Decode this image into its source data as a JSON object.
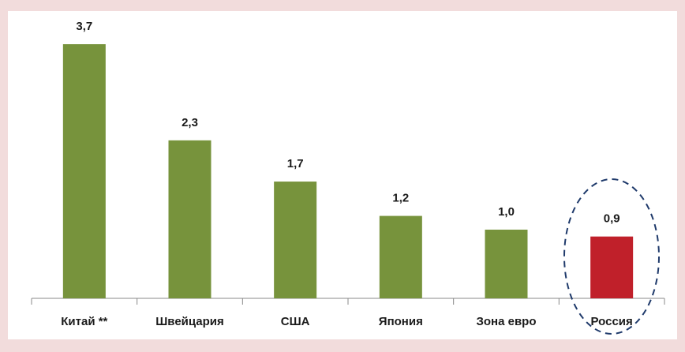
{
  "chart_data": {
    "type": "bar",
    "categories": [
      "Китай **",
      "Швейцария",
      "США",
      "Япония",
      "Зона евро",
      "Россия"
    ],
    "values": [
      3.7,
      2.3,
      1.7,
      1.2,
      1.0,
      0.9
    ],
    "value_labels": [
      "3,7",
      "2,3",
      "1,7",
      "1,2",
      "1,0",
      "0,9"
    ],
    "colors": [
      "#77933c",
      "#77933c",
      "#77933c",
      "#77933c",
      "#77933c",
      "#c0202a"
    ],
    "ylim": [
      0,
      3.7
    ]
  }
}
